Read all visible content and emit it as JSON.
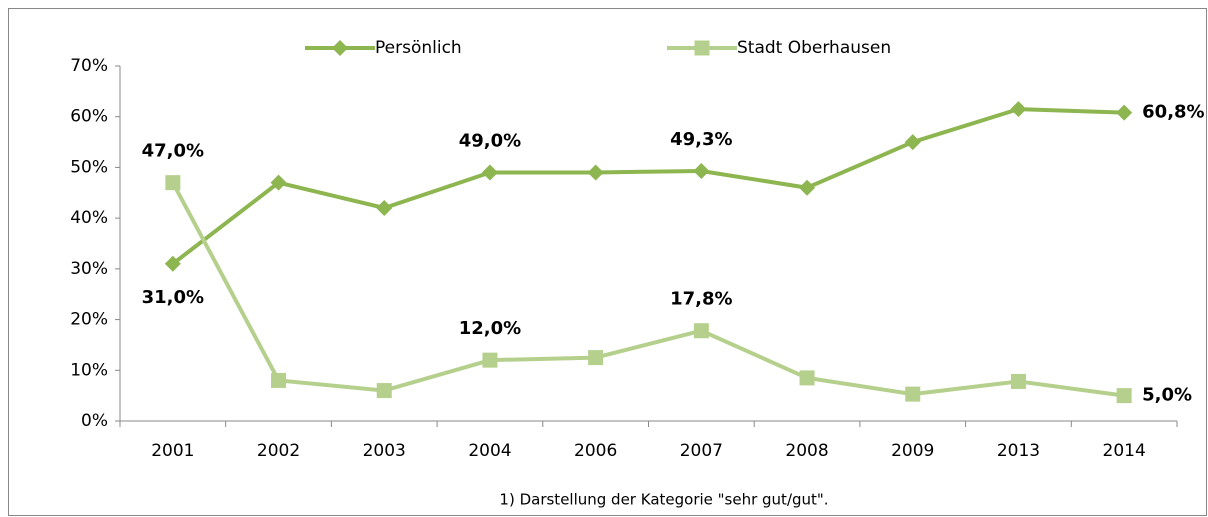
{
  "chart_data": {
    "type": "line",
    "categories": [
      "2001",
      "2002",
      "2003",
      "2004",
      "2006",
      "2007",
      "2008",
      "2009",
      "2013",
      "2014"
    ],
    "series": [
      {
        "name": "Persönlich",
        "color": "#8db550",
        "marker": "diamond",
        "values": [
          31.0,
          47,
          42,
          49.0,
          49,
          49.3,
          46,
          55,
          61.5,
          60.8
        ],
        "value_labels": [
          "31,0%",
          null,
          null,
          "49,0%",
          null,
          "49,3%",
          null,
          null,
          null,
          "60,8%"
        ]
      },
      {
        "name": "Stadt Oberhausen",
        "color": "#b5d08c",
        "marker": "square",
        "values": [
          47.0,
          8,
          6,
          12.0,
          12.5,
          17.8,
          8.5,
          5.3,
          7.8,
          5.0
        ],
        "value_labels": [
          "47,0%",
          null,
          null,
          "12,0%",
          null,
          "17,8%",
          null,
          null,
          null,
          "5,0%"
        ]
      }
    ],
    "ylim": [
      0,
      70
    ],
    "yticks": [
      {
        "value": 0,
        "label": "0%"
      },
      {
        "value": 10,
        "label": "10%"
      },
      {
        "value": 20,
        "label": "20%"
      },
      {
        "value": 30,
        "label": "30%"
      },
      {
        "value": 40,
        "label": "40%"
      },
      {
        "value": 50,
        "label": "50%"
      },
      {
        "value": 60,
        "label": "60%"
      },
      {
        "value": 70,
        "label": "70%"
      }
    ],
    "grid": false,
    "legend": "top",
    "footnote": "1) Darstellung der Kategorie \"sehr gut/gut\"."
  }
}
